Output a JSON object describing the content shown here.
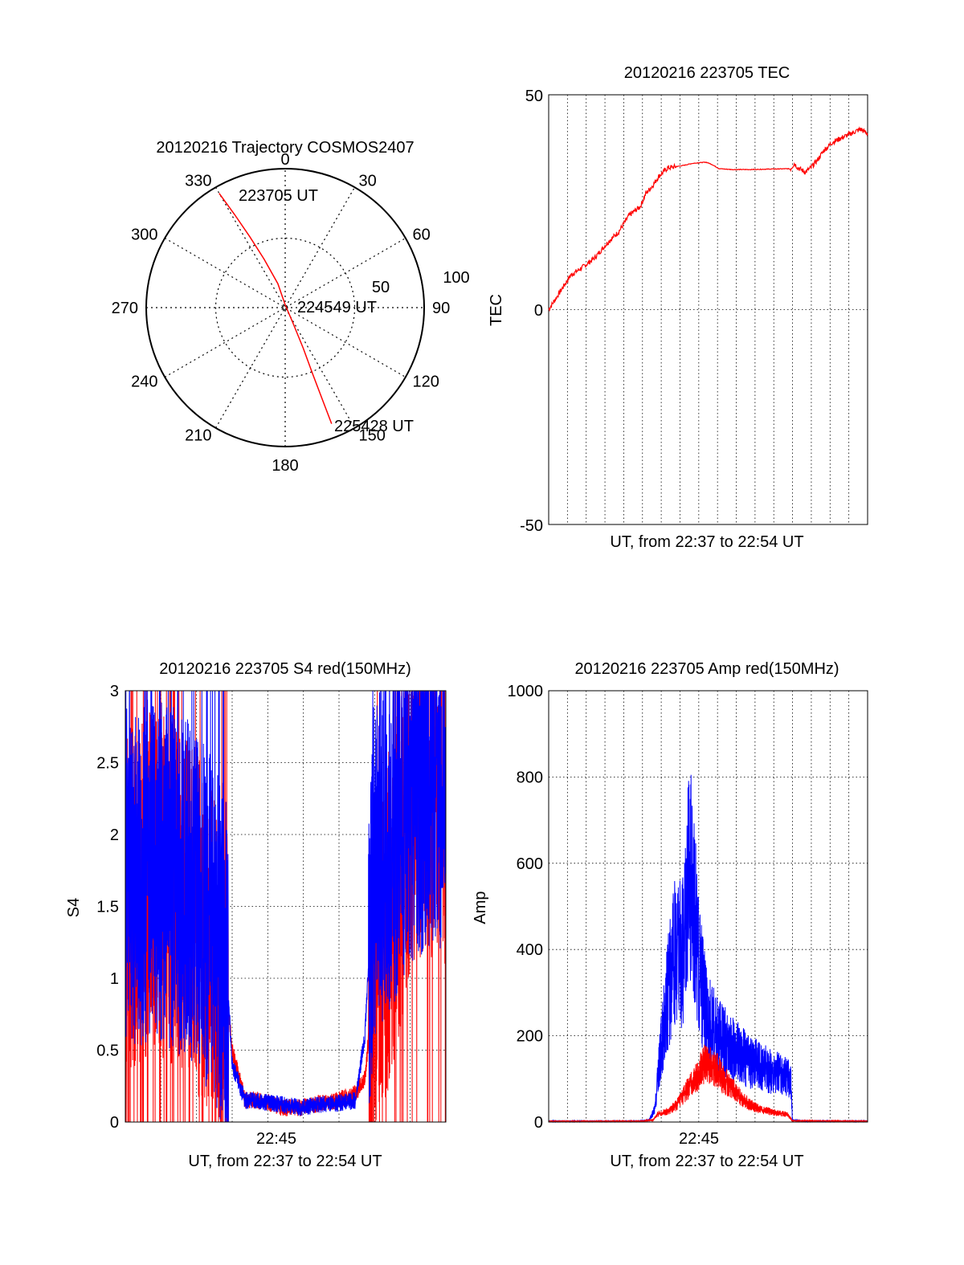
{
  "chart_data": [
    {
      "type": "polar",
      "title": "20120216 Trajectory COSMOS2407",
      "azimuth_labels": [
        "0",
        "30",
        "60",
        "90",
        "120",
        "150",
        "180",
        "210",
        "240",
        "270",
        "300",
        "330"
      ],
      "elevation_labels": [
        "50",
        "100"
      ],
      "r_max": 100,
      "colors": {
        "track": "#ff0000"
      },
      "annotations": {
        "start": "223705 UT",
        "mid": "224549 UT",
        "end": "225428 UT"
      },
      "trajectory": [
        {
          "az": 330.0,
          "r": 95
        },
        {
          "az": 331.5,
          "r": 76
        },
        {
          "az": 333.5,
          "r": 57
        },
        {
          "az": 336.5,
          "r": 38
        },
        {
          "az": 343.0,
          "r": 18
        },
        {
          "az": 0.0,
          "r": 2
        },
        {
          "az": 153.0,
          "r": 12
        },
        {
          "az": 156.0,
          "r": 32
        },
        {
          "az": 157.5,
          "r": 52
        },
        {
          "az": 158.0,
          "r": 72
        },
        {
          "az": 158.2,
          "r": 90
        }
      ]
    },
    {
      "type": "line",
      "title": "20120216 223705 TEC",
      "xlabel": "UT, from 22:37 to 22:54 UT",
      "ylabel": "TEC",
      "xlim": [
        0,
        17.4
      ],
      "ylim": [
        -50,
        50
      ],
      "y_ticks": [
        "50",
        "0",
        "-50"
      ],
      "grid": true,
      "colors": {
        "line": "#ff0000"
      },
      "series": [
        {
          "x": [
            0.0,
            0.6,
            1.2,
            1.9,
            2.5,
            3.3,
            3.8,
            4.4,
            5.0,
            5.3,
            5.7,
            6.0,
            6.5,
            7.0,
            7.4,
            7.8,
            8.2,
            8.6,
            8.9,
            9.3,
            10.0,
            11.0,
            12.0,
            13.2,
            13.4,
            13.6,
            14.0,
            14.3,
            14.7,
            15.0,
            15.5,
            16.0,
            16.5,
            17.0,
            17.4
          ],
          "y": [
            0,
            4,
            8,
            10,
            12,
            16,
            18,
            22,
            24,
            27,
            29,
            31,
            33,
            33.3,
            33.6,
            34.0,
            34.2,
            34.3,
            33.8,
            32.8,
            32.6,
            32.6,
            32.7,
            32.8,
            34,
            33,
            32,
            33,
            35,
            37,
            39,
            40,
            41,
            42,
            41
          ]
        }
      ]
    },
    {
      "type": "line",
      "title": "20120216 223705 S4 red(150MHz)",
      "xlabel": "UT, from 22:37 to 22:54 UT",
      "ylabel": "S4",
      "x_tick_label": "22:45",
      "xlim": [
        0,
        17.4
      ],
      "ylim": [
        0,
        3
      ],
      "y_ticks": [
        "0",
        "0.5",
        "1",
        "1.5",
        "2",
        "2.5",
        "3"
      ],
      "grid": true,
      "colors": {
        "red": "#ff0000",
        "blue": "#0000ff"
      },
      "series": [
        {
          "channel": "red",
          "x": [
            0.0,
            0.7,
            1.5,
            2.5,
            3.5,
            4.5,
            5.5,
            5.8,
            6.5,
            7.5,
            8.5,
            9.5,
            10.5,
            11.5,
            12.5,
            13.0,
            13.5,
            14.5,
            15.5,
            16.5,
            17.4
          ],
          "y": [
            1.5,
            1.6,
            1.7,
            1.6,
            1.5,
            1.2,
            0.9,
            0.5,
            0.15,
            0.15,
            0.1,
            0.1,
            0.13,
            0.15,
            0.2,
            0.3,
            1.0,
            1.5,
            2.2,
            2.3,
            2.3
          ]
        },
        {
          "channel": "blue",
          "x": [
            0.0,
            0.7,
            1.5,
            2.5,
            3.5,
            4.5,
            5.5,
            5.8,
            6.5,
            7.5,
            8.5,
            9.5,
            10.5,
            11.5,
            12.5,
            13.0,
            13.5,
            14.5,
            15.5,
            16.5,
            17.4
          ],
          "y": [
            1.7,
            1.7,
            1.8,
            1.7,
            1.6,
            1.4,
            1.1,
            0.4,
            0.15,
            0.14,
            0.12,
            0.1,
            0.12,
            0.13,
            0.15,
            0.6,
            1.8,
            2.0,
            2.3,
            2.4,
            2.4
          ]
        }
      ]
    },
    {
      "type": "line",
      "title": "20120216 223705 Amp red(150MHz)",
      "xlabel": "UT, from 22:37 to 22:54 UT",
      "ylabel": "Amp",
      "x_tick_label": "22:45",
      "xlim": [
        0,
        17.4
      ],
      "ylim": [
        0,
        1000
      ],
      "y_ticks": [
        "0",
        "200",
        "400",
        "600",
        "800",
        "1000"
      ],
      "grid": true,
      "colors": {
        "red": "#ff0000",
        "blue": "#0000ff"
      },
      "series": [
        {
          "channel": "blue",
          "x": [
            0.0,
            5.0,
            5.5,
            5.8,
            6.0,
            6.5,
            7.0,
            7.3,
            7.6,
            7.9,
            8.2,
            8.6,
            9.2,
            10.0,
            11.0,
            12.0,
            13.2,
            13.3,
            14.0,
            17.4
          ],
          "y": [
            2,
            2,
            5,
            30,
            120,
            300,
            420,
            380,
            600,
            520,
            350,
            250,
            200,
            170,
            140,
            120,
            100,
            5,
            2,
            2
          ]
        },
        {
          "channel": "red",
          "x": [
            0.0,
            5.0,
            5.7,
            6.0,
            6.5,
            7.0,
            7.5,
            8.0,
            8.5,
            9.0,
            9.5,
            10.0,
            10.5,
            11.0,
            11.5,
            12.0,
            12.5,
            13.0,
            13.3,
            17.4
          ],
          "y": [
            2,
            2,
            5,
            20,
            25,
            40,
            70,
            100,
            135,
            130,
            100,
            80,
            55,
            40,
            30,
            25,
            20,
            18,
            3,
            2
          ]
        }
      ]
    }
  ]
}
